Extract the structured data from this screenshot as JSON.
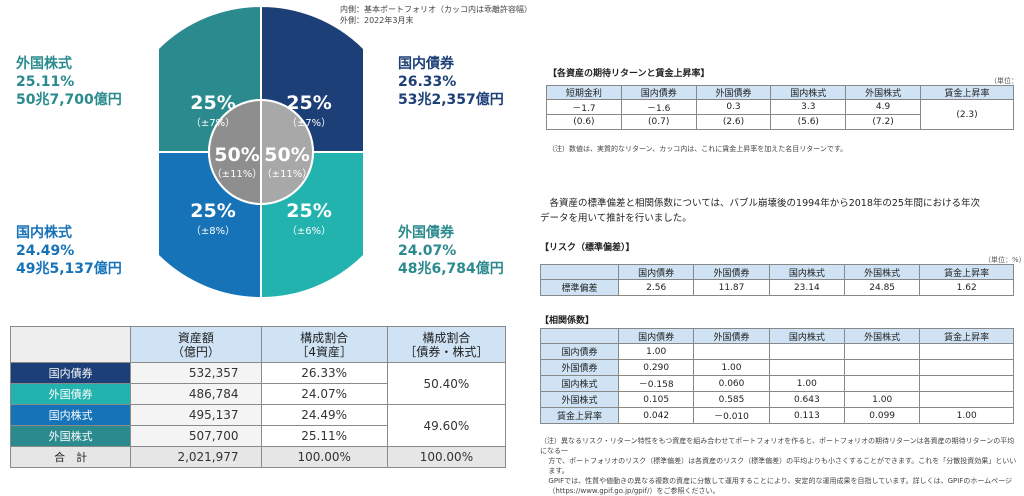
{
  "donut": {
    "note_lines": [
      "内側：基本ポートフォリオ（カッコ内は乖離許容幅）",
      "外側：2022年3月末"
    ],
    "colors": {
      "domestic_bond": "#1d3f78",
      "foreign_bond": "#23b3ae",
      "domestic_stock": "#1773b8",
      "foreign_stock": "#2a8a8e",
      "inner_left": "#8e8e8e",
      "inner_right": "#a8a8a8"
    },
    "quadrants": [
      {
        "pct": "25%",
        "range": "（±7%）"
      },
      {
        "pct": "25%",
        "range": "（±6%）"
      },
      {
        "pct": "25%",
        "range": "（±8%）"
      },
      {
        "pct": "25%",
        "range": "（±7%）"
      }
    ],
    "inner": [
      {
        "pct": "50%",
        "range": "（±11%）"
      },
      {
        "pct": "50%",
        "range": "（±11%）"
      }
    ]
  },
  "labels": {
    "foreign_stock": {
      "name": "外国株式",
      "pct": "25.11%",
      "amount": "50兆7,700億円"
    },
    "domestic_bond": {
      "name": "国内債券",
      "pct": "26.33%",
      "amount": "53兆2,357億円"
    },
    "domestic_stock": {
      "name": "国内株式",
      "pct": "24.49%",
      "amount": "49兆5,137億円"
    },
    "foreign_bond": {
      "name": "外国債券",
      "pct": "24.07%",
      "amount": "48兆6,784億円"
    }
  },
  "table1": {
    "headers": [
      "資産額\n（億円）",
      "構成割合\n［4資産］",
      "構成割合\n［債券・株式］"
    ],
    "rows": [
      {
        "name": "国内債券",
        "amount": "532,357",
        "share": "26.33%",
        "color": "#1d3f78"
      },
      {
        "name": "外国債券",
        "amount": "486,784",
        "share": "24.07%",
        "color": "#23b3ae"
      },
      {
        "name": "国内株式",
        "amount": "495,137",
        "share": "24.49%",
        "color": "#1773b8"
      },
      {
        "name": "外国株式",
        "amount": "507,700",
        "share": "25.11%",
        "color": "#2a8a8e"
      }
    ],
    "group_bond": "50.40%",
    "group_stock": "49.60%",
    "total": {
      "name": "合　計",
      "amount": "2,021,977",
      "share": "100.00%",
      "group": "100.00%"
    }
  },
  "returns": {
    "title": "【各資産の期待リターンと賃金上昇率】",
    "unit": "（単位：%）",
    "headers": [
      "短期金利",
      "国内債券",
      "外国債券",
      "国内株式",
      "外国株式",
      "賃金上昇率"
    ],
    "row1": [
      "－1.7",
      "－1.6",
      "0.3",
      "3.3",
      "4.9"
    ],
    "row2": [
      "(0.6)",
      "(0.7)",
      "(2.6)",
      "(5.6)",
      "(7.2)"
    ],
    "wage": "(2.3)",
    "note": "（注）数値は、実質的なリターン、カッコ内は、これに賃金上昇率を加えた名目リターンです。"
  },
  "paragraph": [
    "各資産の標準偏差と相関係数については、バブル崩壊後の1994年から2018年の25年間における年次",
    "データを用いて推計を行いました。"
  ],
  "risk": {
    "title": "【リスク（標準偏差）】",
    "unit": "（単位：%）",
    "headers": [
      "国内債券",
      "外国債券",
      "国内株式",
      "外国株式",
      "賃金上昇率"
    ],
    "row_label": "標準偏差",
    "values": [
      "2.56",
      "11.87",
      "23.14",
      "24.85",
      "1.62"
    ]
  },
  "corr": {
    "title": "【相関係数】",
    "headers": [
      "国内債券",
      "外国債券",
      "国内株式",
      "外国株式",
      "賃金上昇率"
    ],
    "rows": [
      {
        "label": "国内債券",
        "values": [
          "1.00",
          "",
          "",
          "",
          ""
        ]
      },
      {
        "label": "外国債券",
        "values": [
          "0.290",
          "1.00",
          "",
          "",
          ""
        ]
      },
      {
        "label": "国内株式",
        "values": [
          "－0.158",
          "0.060",
          "1.00",
          "",
          ""
        ]
      },
      {
        "label": "外国株式",
        "values": [
          "0.105",
          "0.585",
          "0.643",
          "1.00",
          ""
        ]
      },
      {
        "label": "賃金上昇率",
        "values": [
          "0.042",
          "－0.010",
          "0.113",
          "0.099",
          "1.00"
        ]
      }
    ]
  },
  "footnote": [
    "（注）異なるリスク・リターン特性をもつ資産を組み合わせてポートフォリオを作ると、ポートフォリオの期待リターンは各資産の期待リターンの平均になる一",
    "方で、ポートフォリオのリスク（標準偏差）は各資産のリスク（標準偏差）の平均よりも小さくすることができます。これを「分散投資効果」といいます。",
    "GPIFでは、性質や値動きの異なる複数の資産に分散して運用することにより、安定的な運用成果を目指しています。詳しくは、GPIFのホームページ",
    "（https://www.gpif.go.jp/gpif/）をご参照ください。"
  ]
}
